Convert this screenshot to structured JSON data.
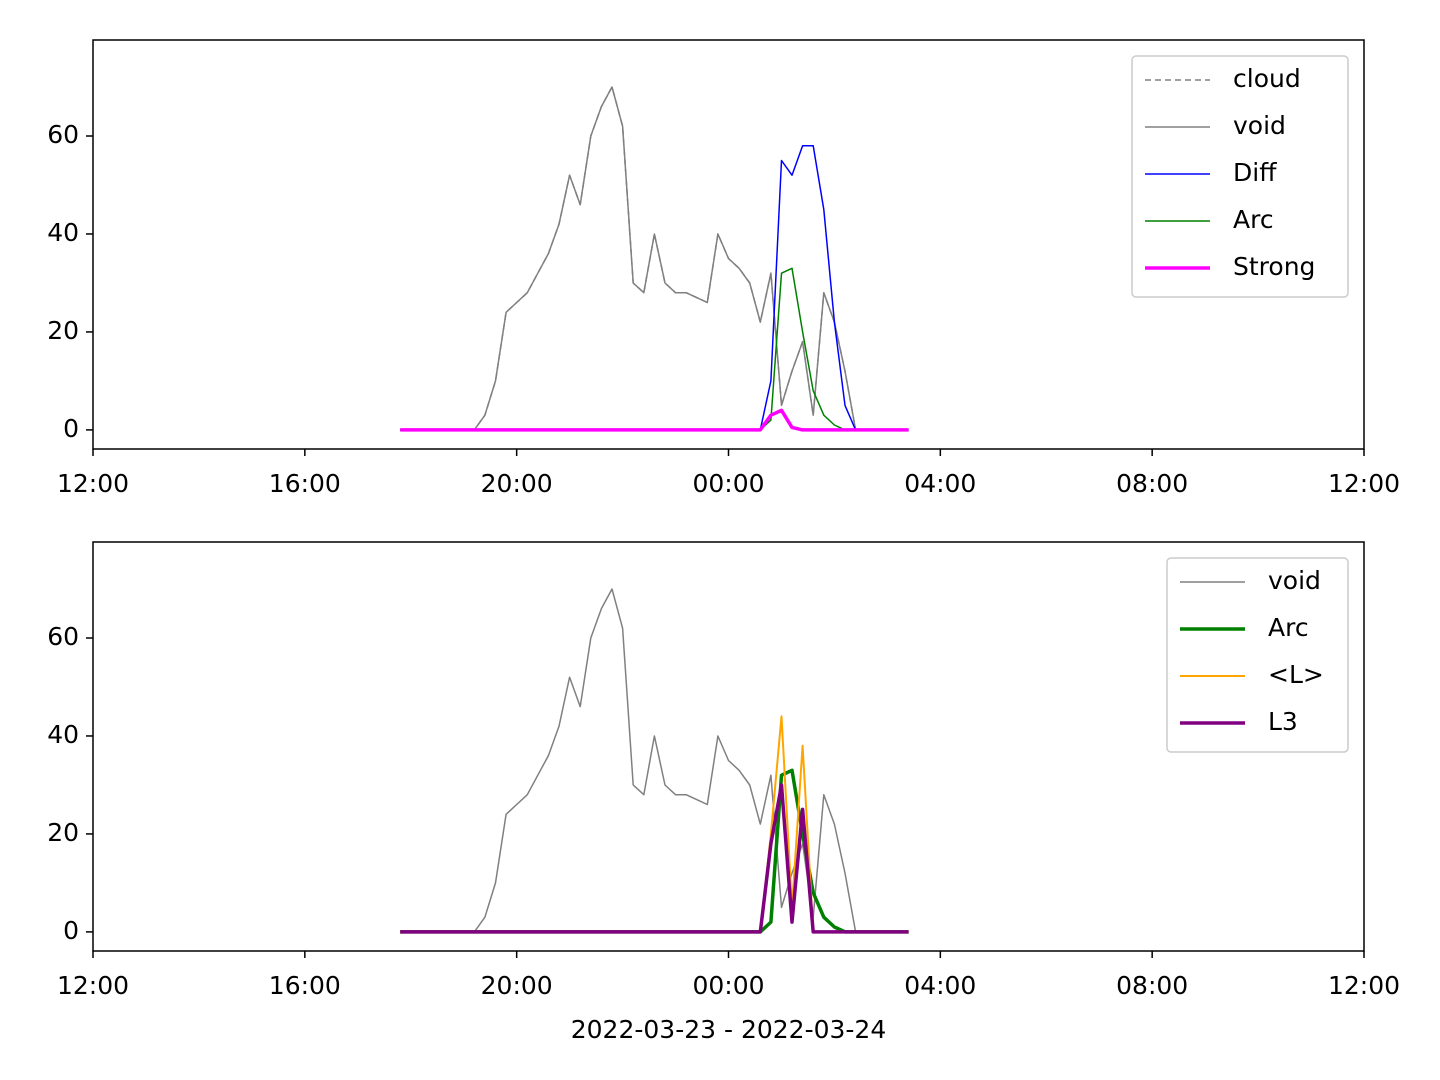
{
  "chart_data": [
    {
      "type": "line",
      "x": [
        17.8,
        18.0,
        18.2,
        18.4,
        18.6,
        18.8,
        19.0,
        19.2,
        19.4,
        19.6,
        19.8,
        20.0,
        20.2,
        20.4,
        20.6,
        20.8,
        21.0,
        21.2,
        21.4,
        21.6,
        21.8,
        22.0,
        22.2,
        22.4,
        22.6,
        22.8,
        23.0,
        23.2,
        23.4,
        23.6,
        23.8,
        24.0,
        24.2,
        24.4,
        24.6,
        24.8,
        25.0,
        25.2,
        25.4,
        25.6,
        25.8,
        26.0,
        26.2,
        26.4,
        26.6,
        26.8,
        27.0,
        27.2,
        27.4
      ],
      "series": [
        {
          "name": "cloud",
          "color": "#808080",
          "linestyle": "dashed",
          "linewidth": 1.5,
          "values": [
            0,
            0,
            0,
            0,
            0,
            0,
            0,
            0,
            3,
            10,
            24,
            26,
            28,
            32,
            36,
            42,
            52,
            46,
            60,
            66,
            70,
            62,
            30,
            28,
            40,
            30,
            28,
            28,
            27,
            26,
            40,
            35,
            33,
            30,
            22,
            32,
            5,
            12,
            18,
            3,
            28,
            22,
            12,
            0,
            0,
            0,
            0,
            0,
            0
          ]
        },
        {
          "name": "void",
          "color": "#808080",
          "linestyle": "solid",
          "linewidth": 1.5,
          "values": [
            0,
            0,
            0,
            0,
            0,
            0,
            0,
            0,
            3,
            10,
            24,
            26,
            28,
            32,
            36,
            42,
            52,
            46,
            60,
            66,
            70,
            62,
            30,
            28,
            40,
            30,
            28,
            28,
            27,
            26,
            40,
            35,
            33,
            30,
            22,
            32,
            5,
            12,
            18,
            3,
            28,
            22,
            12,
            0,
            0,
            0,
            0,
            0,
            0
          ]
        },
        {
          "name": "Diff",
          "color": "#0000ff",
          "linestyle": "solid",
          "linewidth": 1.5,
          "values": [
            0,
            0,
            0,
            0,
            0,
            0,
            0,
            0,
            0,
            0,
            0,
            0,
            0,
            0,
            0,
            0,
            0,
            0,
            0,
            0,
            0,
            0,
            0,
            0,
            0,
            0,
            0,
            0,
            0,
            0,
            0,
            0,
            0,
            0,
            0,
            10,
            55,
            52,
            58,
            58,
            45,
            22,
            5,
            0,
            0,
            0,
            0,
            0,
            0
          ]
        },
        {
          "name": "Arc",
          "color": "#008000",
          "linestyle": "solid",
          "linewidth": 1.5,
          "values": [
            0,
            0,
            0,
            0,
            0,
            0,
            0,
            0,
            0,
            0,
            0,
            0,
            0,
            0,
            0,
            0,
            0,
            0,
            0,
            0,
            0,
            0,
            0,
            0,
            0,
            0,
            0,
            0,
            0,
            0,
            0,
            0,
            0,
            0,
            0,
            2,
            32,
            33,
            20,
            8,
            3,
            1,
            0,
            0,
            0,
            0,
            0,
            0,
            0
          ]
        },
        {
          "name": "Strong",
          "color": "#ff00ff",
          "linestyle": "solid",
          "linewidth": 3.5,
          "values": [
            0,
            0,
            0,
            0,
            0,
            0,
            0,
            0,
            0,
            0,
            0,
            0,
            0,
            0,
            0,
            0,
            0,
            0,
            0,
            0,
            0,
            0,
            0,
            0,
            0,
            0,
            0,
            0,
            0,
            0,
            0,
            0,
            0,
            0,
            0,
            3,
            4,
            0.5,
            0,
            0,
            0,
            0,
            0,
            0,
            0,
            0,
            0,
            0,
            0
          ]
        }
      ],
      "xlim": [
        12,
        36
      ],
      "ylim": [
        -3.9,
        79.6
      ],
      "xticks": [
        {
          "value": 12,
          "label": "12:00"
        },
        {
          "value": 16,
          "label": "16:00"
        },
        {
          "value": 20,
          "label": "20:00"
        },
        {
          "value": 24,
          "label": "00:00"
        },
        {
          "value": 28,
          "label": "04:00"
        },
        {
          "value": 32,
          "label": "08:00"
        },
        {
          "value": 36,
          "label": "12:00"
        }
      ],
      "yticks": [
        0,
        20,
        40,
        60
      ],
      "legend": "upper right"
    },
    {
      "type": "line",
      "x": [
        17.8,
        18.0,
        18.2,
        18.4,
        18.6,
        18.8,
        19.0,
        19.2,
        19.4,
        19.6,
        19.8,
        20.0,
        20.2,
        20.4,
        20.6,
        20.8,
        21.0,
        21.2,
        21.4,
        21.6,
        21.8,
        22.0,
        22.2,
        22.4,
        22.6,
        22.8,
        23.0,
        23.2,
        23.4,
        23.6,
        23.8,
        24.0,
        24.2,
        24.4,
        24.6,
        24.8,
        25.0,
        25.2,
        25.4,
        25.6,
        25.8,
        26.0,
        26.2,
        26.4,
        26.6,
        26.8,
        27.0,
        27.2,
        27.4
      ],
      "series": [
        {
          "name": "void",
          "color": "#808080",
          "linestyle": "solid",
          "linewidth": 1.5,
          "values": [
            0,
            0,
            0,
            0,
            0,
            0,
            0,
            0,
            3,
            10,
            24,
            26,
            28,
            32,
            36,
            42,
            52,
            46,
            60,
            66,
            70,
            62,
            30,
            28,
            40,
            30,
            28,
            28,
            27,
            26,
            40,
            35,
            33,
            30,
            22,
            32,
            5,
            12,
            18,
            3,
            28,
            22,
            12,
            0,
            0,
            0,
            0,
            0,
            0
          ]
        },
        {
          "name": "Arc",
          "color": "#008000",
          "linestyle": "solid",
          "linewidth": 3.5,
          "values": [
            0,
            0,
            0,
            0,
            0,
            0,
            0,
            0,
            0,
            0,
            0,
            0,
            0,
            0,
            0,
            0,
            0,
            0,
            0,
            0,
            0,
            0,
            0,
            0,
            0,
            0,
            0,
            0,
            0,
            0,
            0,
            0,
            0,
            0,
            0,
            2,
            32,
            33,
            20,
            8,
            3,
            1,
            0,
            0,
            0,
            0,
            0,
            0,
            0
          ]
        },
        {
          "name": "<L>",
          "color": "#ffa500",
          "linestyle": "solid",
          "linewidth": 2,
          "values": [
            0,
            0,
            0,
            0,
            0,
            0,
            0,
            0,
            0,
            0,
            0,
            0,
            0,
            0,
            0,
            0,
            0,
            0,
            0,
            0,
            0,
            0,
            0,
            0,
            0,
            0,
            0,
            0,
            0,
            0,
            0,
            0,
            0,
            0,
            0,
            20,
            44,
            5,
            38,
            0,
            0,
            0,
            0,
            0,
            0,
            0,
            0,
            0,
            0
          ]
        },
        {
          "name": "L3",
          "color": "#800080",
          "linestyle": "solid",
          "linewidth": 3.5,
          "values": [
            0,
            0,
            0,
            0,
            0,
            0,
            0,
            0,
            0,
            0,
            0,
            0,
            0,
            0,
            0,
            0,
            0,
            0,
            0,
            0,
            0,
            0,
            0,
            0,
            0,
            0,
            0,
            0,
            0,
            0,
            0,
            0,
            0,
            0,
            0,
            18,
            30,
            2,
            25,
            0,
            0,
            0,
            0,
            0,
            0,
            0,
            0,
            0,
            0
          ]
        }
      ],
      "xlim": [
        12,
        36
      ],
      "ylim": [
        -3.9,
        79.6
      ],
      "xticks": [
        {
          "value": 12,
          "label": "12:00"
        },
        {
          "value": 16,
          "label": "16:00"
        },
        {
          "value": 20,
          "label": "20:00"
        },
        {
          "value": 24,
          "label": "00:00"
        },
        {
          "value": 28,
          "label": "04:00"
        },
        {
          "value": 32,
          "label": "08:00"
        },
        {
          "value": 36,
          "label": "12:00"
        }
      ],
      "yticks": [
        0,
        20,
        40,
        60
      ],
      "x_label": "2022-03-23 - 2022-03-24",
      "legend": "upper right"
    }
  ]
}
